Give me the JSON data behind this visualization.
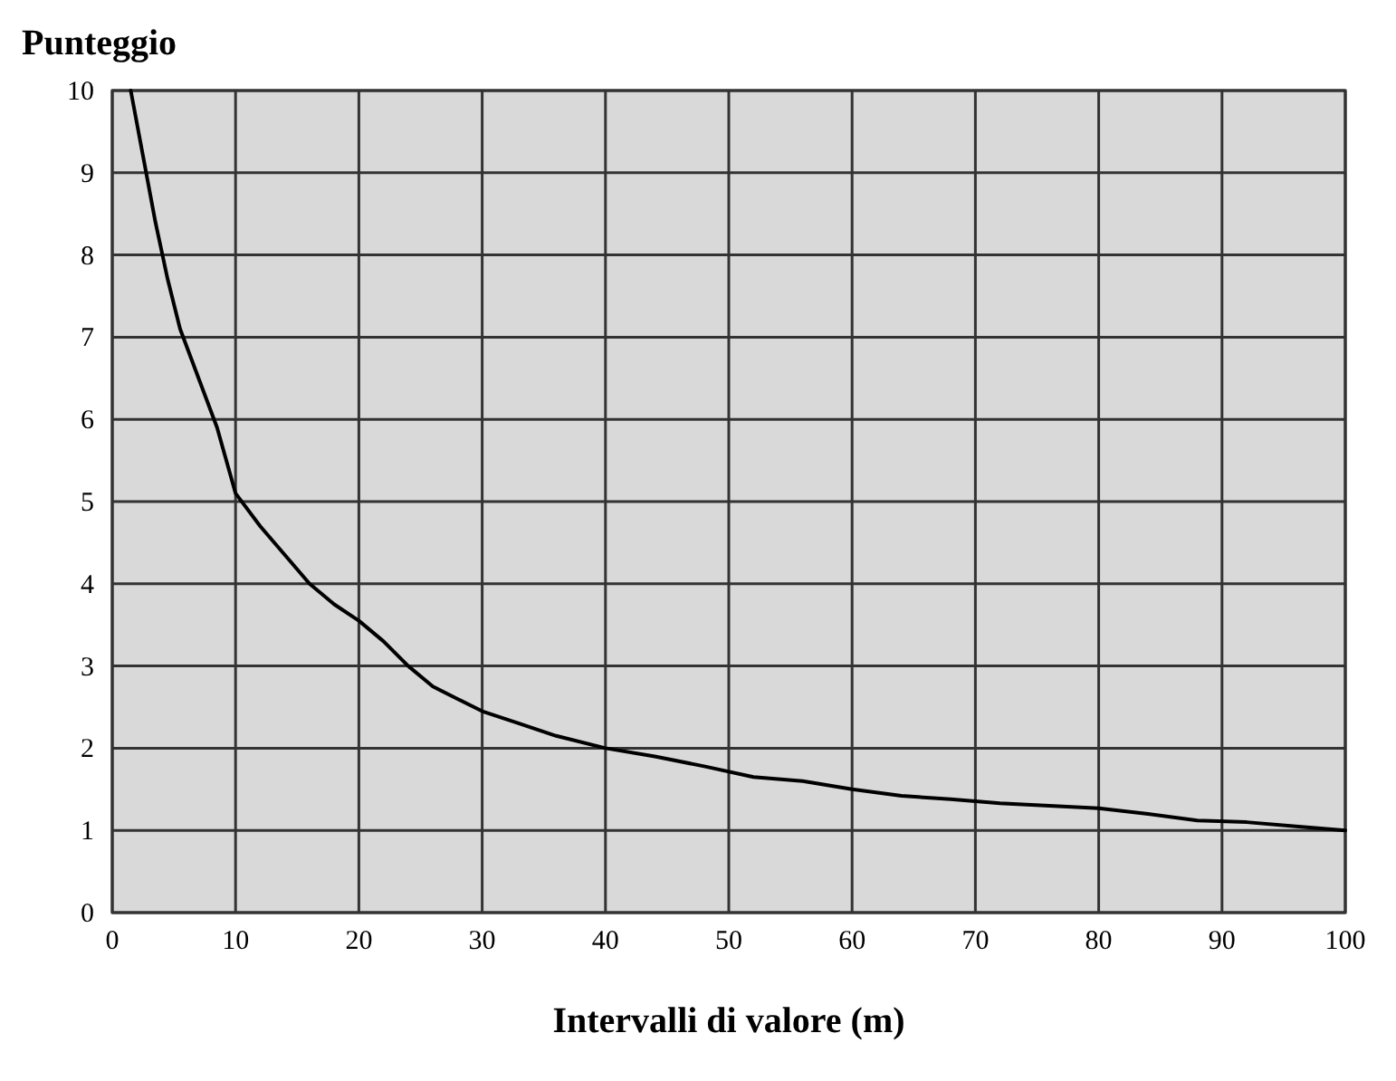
{
  "chart_data": {
    "type": "line",
    "ylabel": "Punteggio",
    "xlabel": "Intervalli di valore (m)",
    "xlim": [
      0,
      100
    ],
    "ylim": [
      0,
      10
    ],
    "xticks": [
      0,
      10,
      20,
      30,
      40,
      50,
      60,
      70,
      80,
      90,
      100
    ],
    "yticks": [
      0,
      1,
      2,
      3,
      4,
      5,
      6,
      7,
      8,
      9,
      10
    ],
    "grid": true,
    "series": [
      {
        "color": "#000000",
        "x": [
          1.5,
          2.5,
          3.5,
          4.5,
          5.5,
          7,
          8.5,
          10,
          12,
          14,
          16,
          18,
          20,
          22,
          24,
          26,
          28,
          30,
          33,
          36,
          40,
          44,
          48,
          52,
          56,
          60,
          64,
          68,
          72,
          76,
          80,
          84,
          88,
          92,
          96,
          100
        ],
        "values": [
          10,
          9.2,
          8.4,
          7.7,
          7.1,
          6.5,
          5.9,
          5.1,
          4.7,
          4.35,
          4.0,
          3.75,
          3.55,
          3.3,
          3.0,
          2.75,
          2.6,
          2.45,
          2.3,
          2.15,
          2.0,
          1.9,
          1.78,
          1.65,
          1.6,
          1.5,
          1.42,
          1.38,
          1.33,
          1.3,
          1.27,
          1.2,
          1.12,
          1.1,
          1.05,
          1.0
        ]
      }
    ]
  }
}
